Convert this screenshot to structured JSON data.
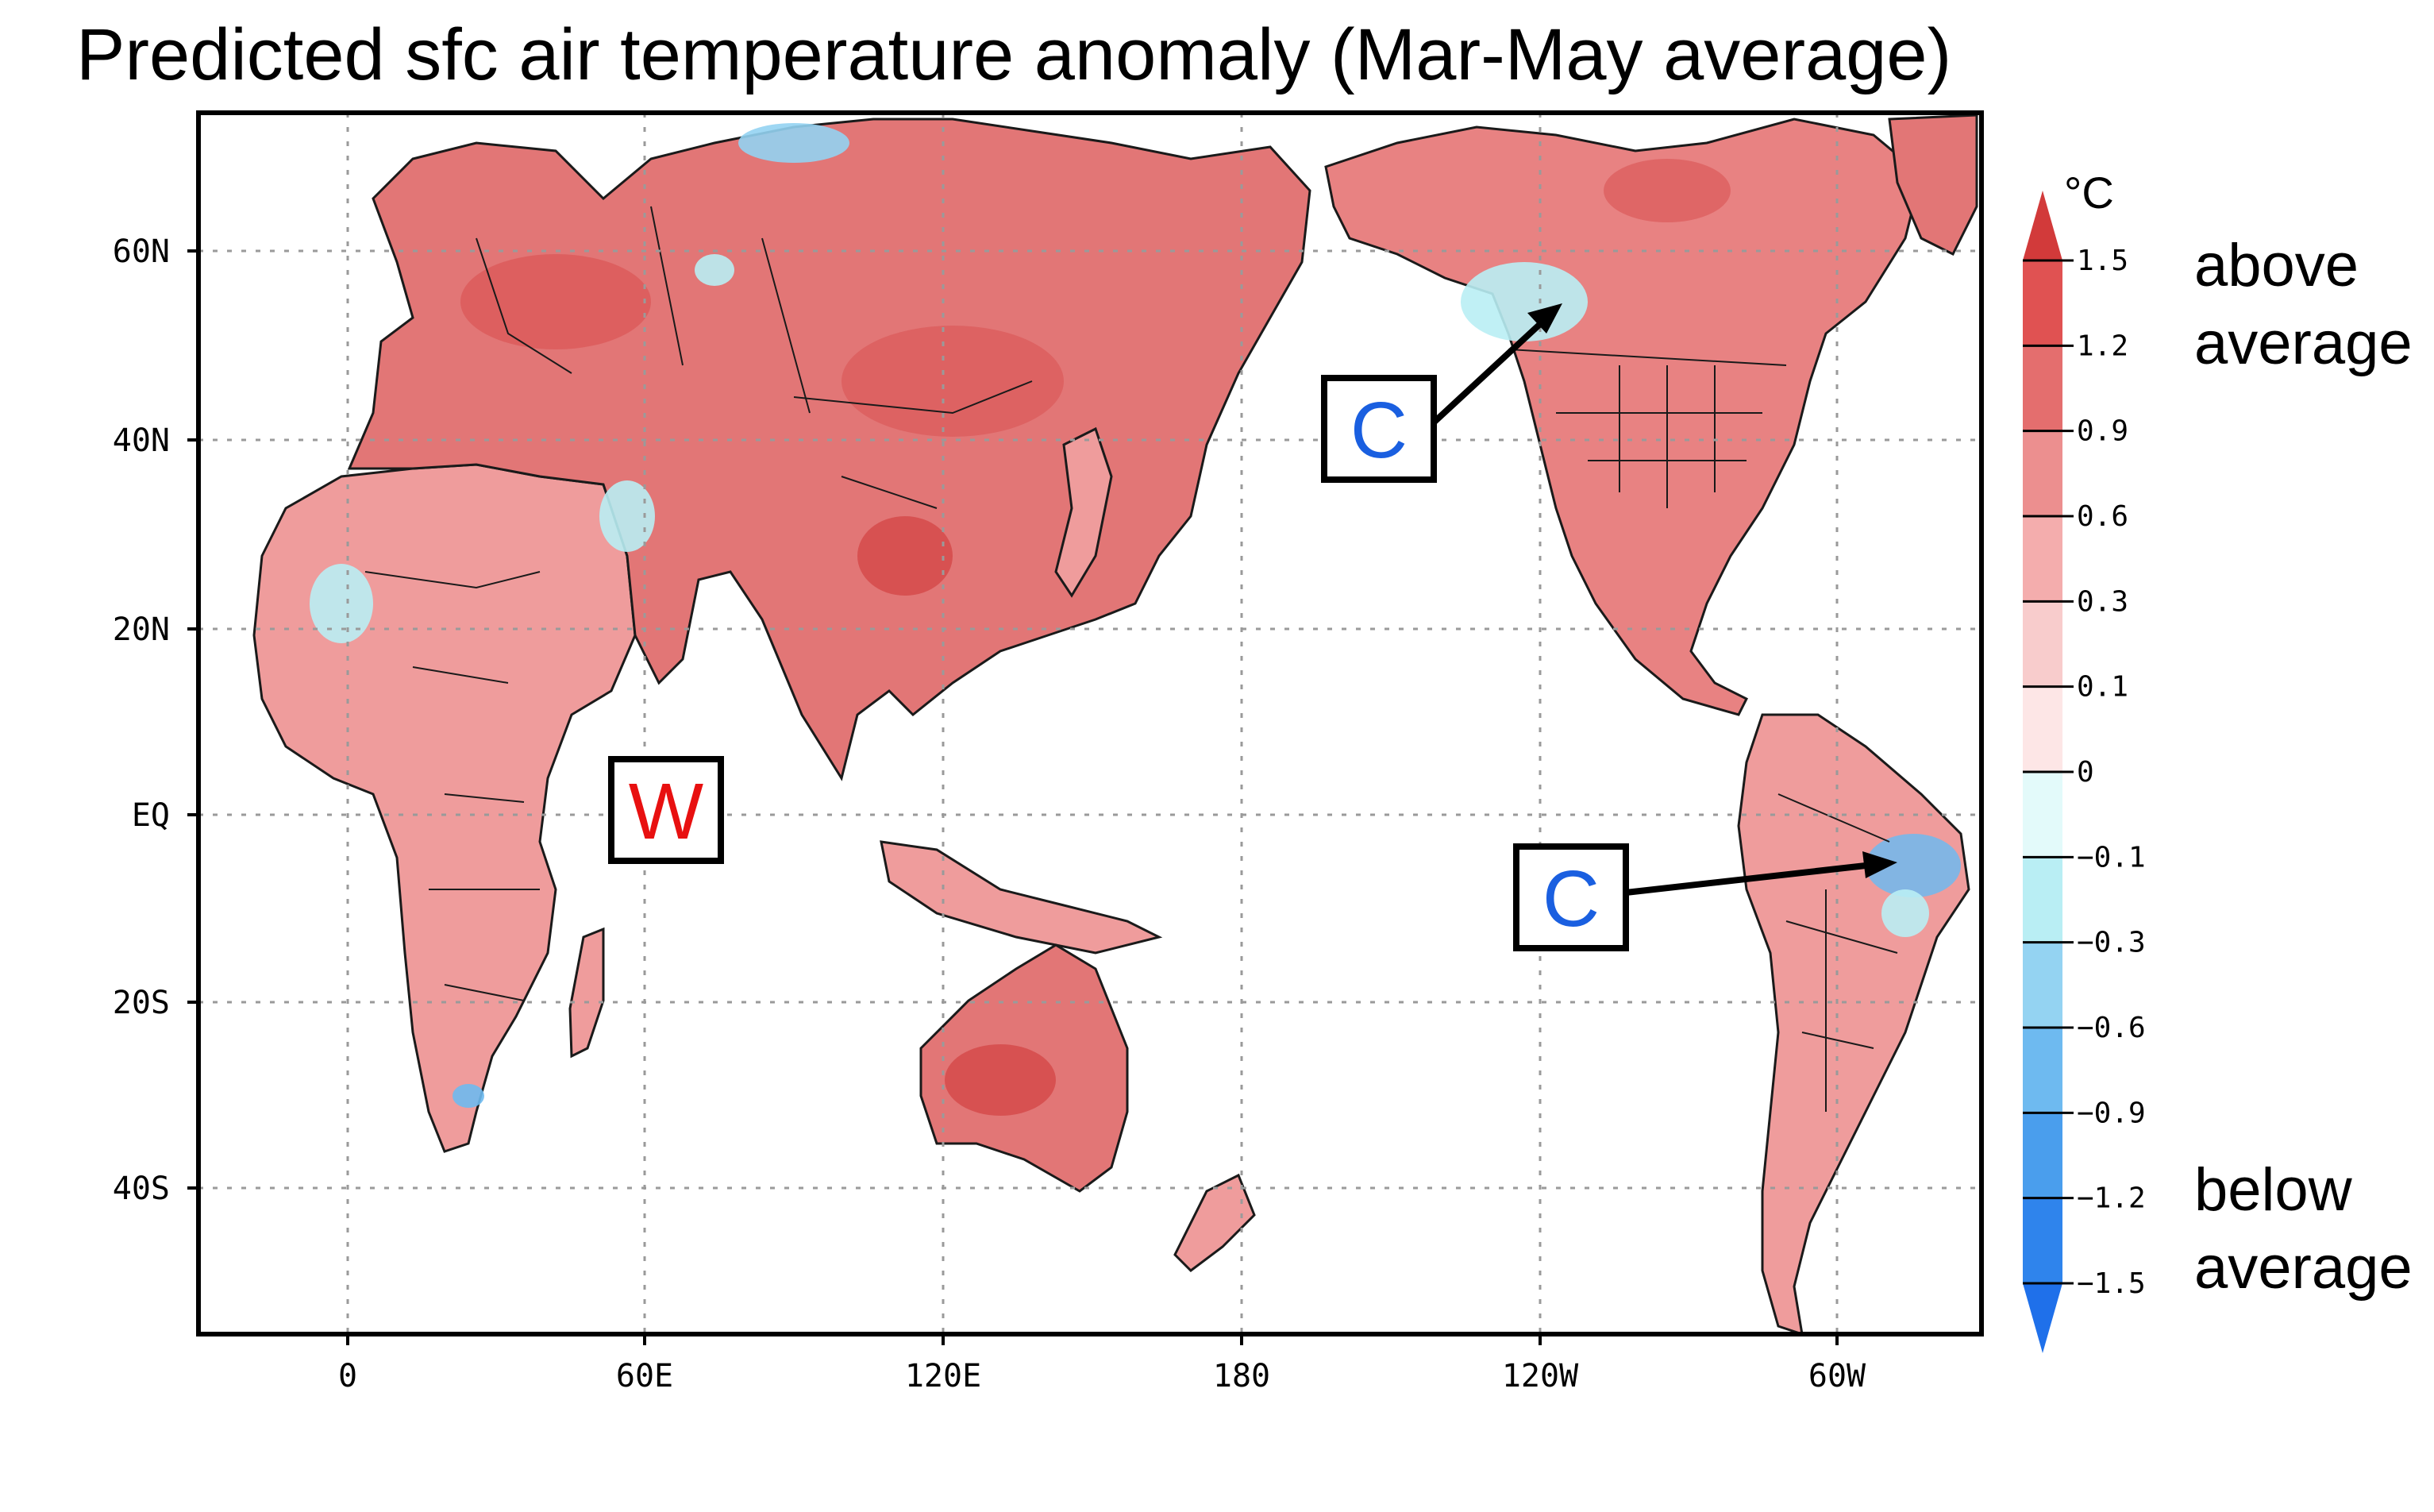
{
  "title": "Predicted sfc air temperature anomaly (Mar-May average)",
  "map": {
    "lat_labels": [
      "60N",
      "40N",
      "20N",
      "EQ",
      "20S",
      "40S"
    ],
    "lon_labels": [
      "0",
      "60E",
      "120E",
      "180",
      "120W",
      "60W"
    ]
  },
  "colorbar": {
    "unit": "°C",
    "levels": [
      "1.5",
      "1.2",
      "0.9",
      "0.6",
      "0.3",
      "0.1",
      "0",
      "−0.1",
      "−0.3",
      "−0.6",
      "−0.9",
      "−1.2",
      "−1.5"
    ],
    "colors": [
      "#d23a3a",
      "#e05252",
      "#e46e6e",
      "#ec8f8f",
      "#f4adad",
      "#f8cccc",
      "#fde6e6",
      "#e3fafa",
      "#b9eef4",
      "#94d3f2",
      "#6ebaf0",
      "#4a9eed",
      "#2f84ec",
      "#1f70ea"
    ],
    "above_label": [
      "above",
      "average"
    ],
    "below_label": [
      "below",
      "average"
    ]
  },
  "callouts": [
    {
      "text": "W",
      "color": "#e81010"
    },
    {
      "text": "C",
      "color": "#1a5fe0"
    },
    {
      "text": "C",
      "color": "#1a5fe0"
    }
  ],
  "palette": {
    "land_warm": "#ec8f8f",
    "land_hot": "#dc5a5a",
    "cool": "#b9eef4",
    "cold": "#6ebaf0"
  }
}
